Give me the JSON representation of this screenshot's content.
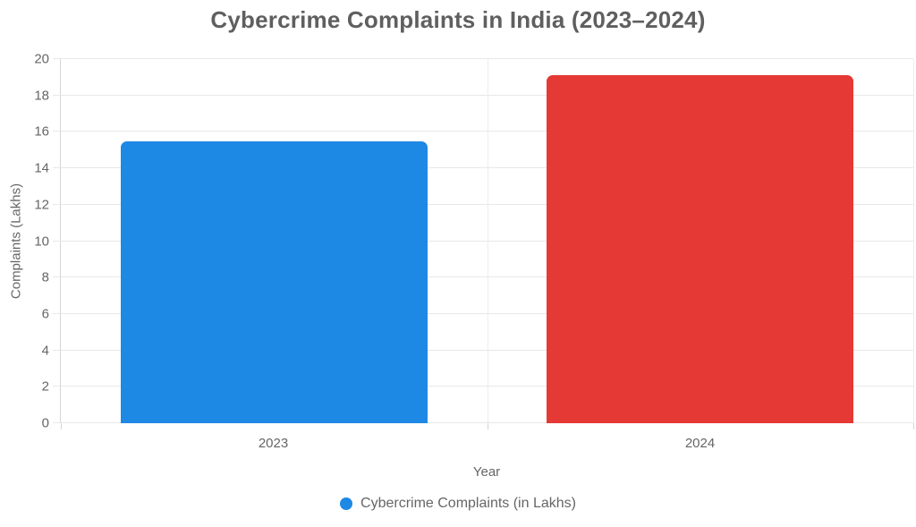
{
  "chart_data": {
    "type": "bar",
    "title": "Cybercrime Complaints in India (2023–2024)",
    "xlabel": "Year",
    "ylabel": "Complaints (Lakhs)",
    "categories": [
      "2023",
      "2024"
    ],
    "series": [
      {
        "name": "Cybercrime Complaints (in Lakhs)",
        "values": [
          15.5,
          19.1
        ],
        "colors": [
          "#1e88e5",
          "#e53935"
        ]
      }
    ],
    "ylim": [
      0,
      20
    ],
    "yticks": [
      0,
      2,
      4,
      6,
      8,
      10,
      12,
      14,
      16,
      18,
      20
    ],
    "grid": true,
    "legend_position": "bottom",
    "legend_marker_color": "#1e88e5",
    "background_color": "#ffffff",
    "gridline_color": "#e8e8e8",
    "axis_line_color": "#d4d4d4",
    "text_color": "#666666",
    "title_color": "#5f5f5f"
  }
}
